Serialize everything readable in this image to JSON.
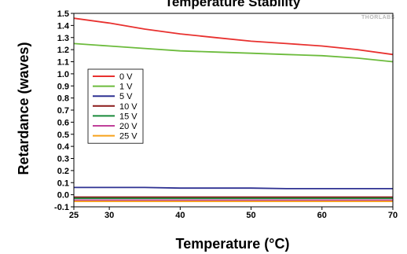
{
  "chart_data": {
    "type": "line",
    "title": "Temperature Stability",
    "xlabel": "Temperature (°C)",
    "ylabel": "Retardance (waves)",
    "xlim": [
      25,
      70
    ],
    "ylim": [
      -0.1,
      1.5
    ],
    "xticks": [
      25,
      30,
      40,
      50,
      60,
      70
    ],
    "yticks": [
      -0.1,
      0.0,
      0.1,
      0.2,
      0.3,
      0.4,
      0.5,
      0.6,
      0.7,
      0.8,
      0.9,
      1.0,
      1.1,
      1.2,
      1.3,
      1.4,
      1.5
    ],
    "grid": true,
    "legend_position": "left",
    "watermark": "THORLABS",
    "series": [
      {
        "name": "0 V",
        "color": "#e8312f",
        "x": [
          25,
          30,
          35,
          40,
          45,
          50,
          55,
          60,
          65,
          70
        ],
        "y": [
          1.46,
          1.42,
          1.37,
          1.33,
          1.3,
          1.27,
          1.25,
          1.23,
          1.2,
          1.16
        ]
      },
      {
        "name": "1 V",
        "color": "#6cbb3c",
        "x": [
          25,
          30,
          35,
          40,
          45,
          50,
          55,
          60,
          65,
          70
        ],
        "y": [
          1.25,
          1.23,
          1.21,
          1.19,
          1.18,
          1.17,
          1.16,
          1.15,
          1.13,
          1.1
        ]
      },
      {
        "name": "5 V",
        "color": "#2e3192",
        "x": [
          25,
          30,
          35,
          40,
          45,
          50,
          55,
          60,
          65,
          70
        ],
        "y": [
          0.06,
          0.06,
          0.06,
          0.055,
          0.055,
          0.055,
          0.05,
          0.05,
          0.05,
          0.05
        ]
      },
      {
        "name": "10 V",
        "color": "#8b1a1a",
        "x": [
          25,
          30,
          35,
          40,
          45,
          50,
          55,
          60,
          65,
          70
        ],
        "y": [
          -0.02,
          -0.02,
          -0.02,
          -0.02,
          -0.02,
          -0.02,
          -0.02,
          -0.02,
          -0.02,
          -0.02
        ]
      },
      {
        "name": "15 V",
        "color": "#1a8a3a",
        "x": [
          25,
          30,
          35,
          40,
          45,
          50,
          55,
          60,
          65,
          70
        ],
        "y": [
          -0.03,
          -0.03,
          -0.03,
          -0.03,
          -0.03,
          -0.03,
          -0.03,
          -0.03,
          -0.03,
          -0.03
        ]
      },
      {
        "name": "20 V",
        "color": "#c0409a",
        "x": [
          25,
          30,
          35,
          40,
          45,
          50,
          55,
          60,
          65,
          70
        ],
        "y": [
          -0.045,
          -0.045,
          -0.045,
          -0.045,
          -0.045,
          -0.045,
          -0.045,
          -0.045,
          -0.045,
          -0.045
        ]
      },
      {
        "name": "25 V",
        "color": "#f7a21b",
        "x": [
          25,
          30,
          35,
          40,
          45,
          50,
          55,
          60,
          65,
          70
        ],
        "y": [
          -0.055,
          -0.055,
          -0.055,
          -0.055,
          -0.055,
          -0.055,
          -0.055,
          -0.055,
          -0.055,
          -0.055
        ]
      }
    ]
  }
}
